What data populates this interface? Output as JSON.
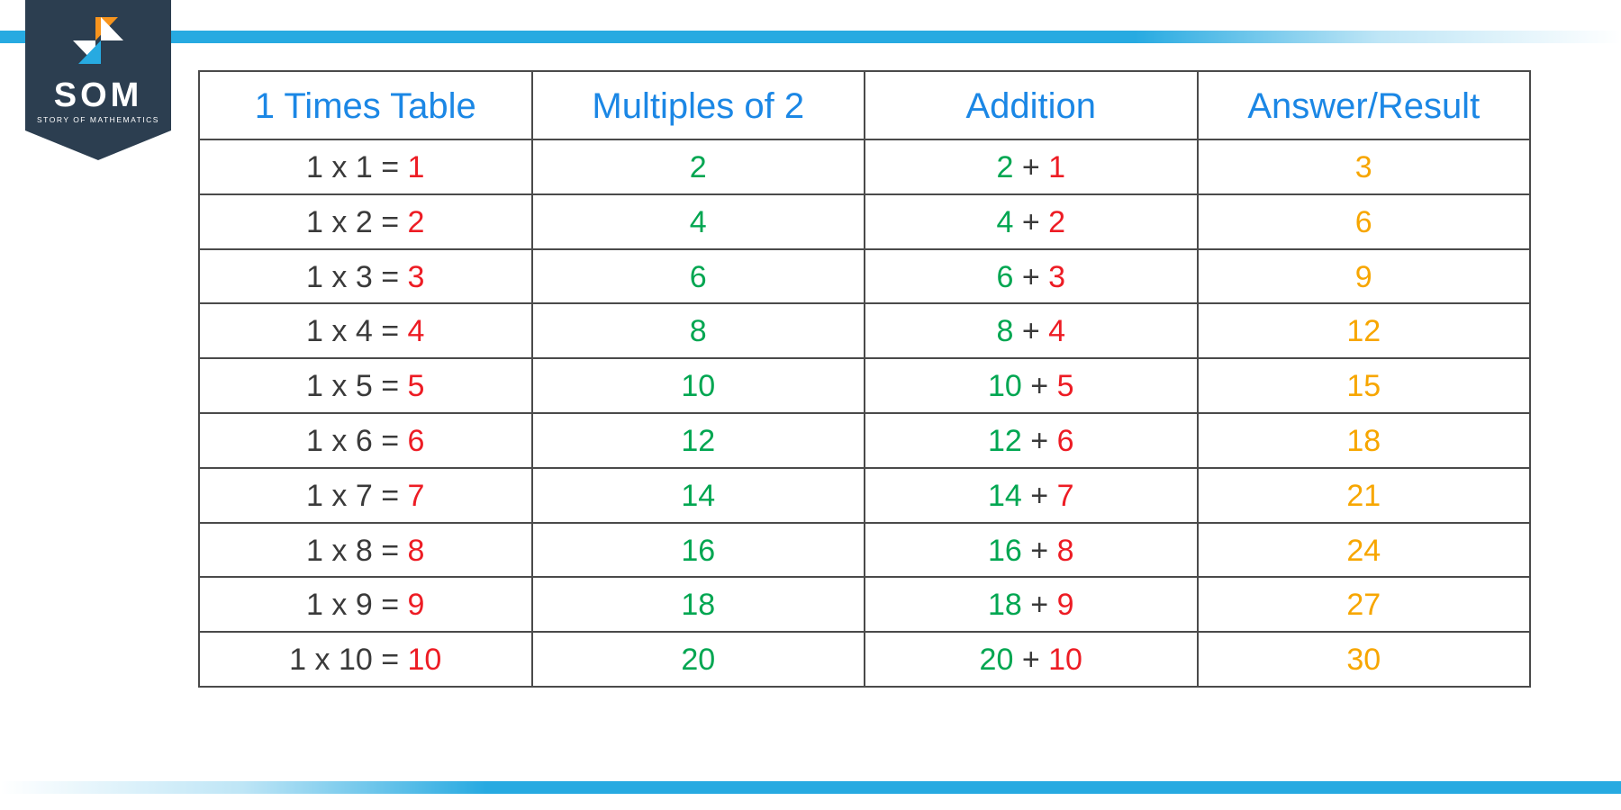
{
  "logo": {
    "title": "SOM",
    "subtitle": "STORY OF MATHEMATICS"
  },
  "colors": {
    "header": "#1b87e5",
    "dark": "#3a3a3a",
    "red": "#ed1c24",
    "green": "#00a651",
    "yellow": "#f7a600",
    "border": "#4a4a4a",
    "bar": "#27aae1",
    "badge": "#2c3e50",
    "logo_orange": "#f7941d",
    "logo_blue": "#27aae1"
  },
  "table": {
    "columns": [
      "1 Times Table",
      "Multiples of 2",
      "Addition",
      "Answer/Result"
    ],
    "rows": [
      {
        "tt_lhs": "1 x 1 = ",
        "tt_res": "1",
        "mult": "2",
        "add_a": "2",
        "add_plus": " + ",
        "add_b": "1",
        "ans": "3"
      },
      {
        "tt_lhs": "1 x 2 = ",
        "tt_res": "2",
        "mult": "4",
        "add_a": "4",
        "add_plus": " + ",
        "add_b": "2",
        "ans": "6"
      },
      {
        "tt_lhs": "1 x 3 = ",
        "tt_res": "3",
        "mult": "6",
        "add_a": "6",
        "add_plus": " + ",
        "add_b": "3",
        "ans": "9"
      },
      {
        "tt_lhs": "1 x 4 = ",
        "tt_res": "4",
        "mult": "8",
        "add_a": "8",
        "add_plus": " + ",
        "add_b": "4",
        "ans": "12"
      },
      {
        "tt_lhs": "1 x 5 = ",
        "tt_res": "5",
        "mult": "10",
        "add_a": "10",
        "add_plus": " + ",
        "add_b": "5",
        "ans": "15"
      },
      {
        "tt_lhs": "1 x 6 = ",
        "tt_res": "6",
        "mult": "12",
        "add_a": "12",
        "add_plus": " + ",
        "add_b": "6",
        "ans": "18"
      },
      {
        "tt_lhs": "1 x 7 = ",
        "tt_res": "7",
        "mult": "14",
        "add_a": "14",
        "add_plus": " + ",
        "add_b": "7",
        "ans": "21"
      },
      {
        "tt_lhs": "1 x 8 = ",
        "tt_res": "8",
        "mult": "16",
        "add_a": "16",
        "add_plus": " + ",
        "add_b": "8",
        "ans": "24"
      },
      {
        "tt_lhs": "1 x 9 = ",
        "tt_res": "9",
        "mult": "18",
        "add_a": "18",
        "add_plus": " + ",
        "add_b": "9",
        "ans": "27"
      },
      {
        "tt_lhs": "1 x 10 = ",
        "tt_res": "10",
        "mult": "20",
        "add_a": "20",
        "add_plus": " + ",
        "add_b": "10",
        "ans": "30"
      }
    ]
  }
}
